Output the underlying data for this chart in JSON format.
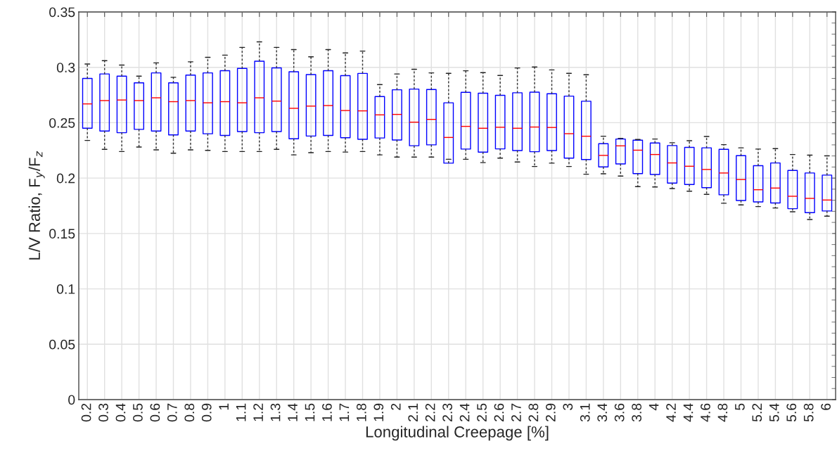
{
  "chart_data": {
    "type": "box",
    "xlabel": "Longitudinal Creepage [%]",
    "ylabel": "L/V Ratio, F$_{y}$/F$_{z}$",
    "categories": [
      "0.2",
      "0.3",
      "0.4",
      "0.5",
      "0.6",
      "0.7",
      "0.8",
      "0.9",
      "1",
      "1.1",
      "1.2",
      "1.3",
      "1.4",
      "1.5",
      "1.6",
      "1.7",
      "1.8",
      "1.9",
      "2",
      "2.1",
      "2.2",
      "2.3",
      "2.4",
      "2.5",
      "2.6",
      "2.7",
      "2.8",
      "2.9",
      "3",
      "3.1",
      "3.4",
      "3.6",
      "3.8",
      "4",
      "4.2",
      "4.4",
      "4.6",
      "4.8",
      "5",
      "5.2",
      "5.4",
      "5.6",
      "5.8",
      "6"
    ],
    "series": [
      {
        "color": "#0000ff",
        "boxes": [
          {
            "low": 0.234,
            "q1": 0.245,
            "median": 0.267,
            "q3": 0.29,
            "high": 0.303
          },
          {
            "low": 0.226,
            "q1": 0.2425,
            "median": 0.27,
            "q3": 0.294,
            "high": 0.306
          },
          {
            "low": 0.224,
            "q1": 0.241,
            "median": 0.2705,
            "q3": 0.292,
            "high": 0.302
          },
          {
            "low": 0.228,
            "q1": 0.244,
            "median": 0.27,
            "q3": 0.286,
            "high": 0.292
          },
          {
            "low": 0.2255,
            "q1": 0.2425,
            "median": 0.2725,
            "q3": 0.295,
            "high": 0.304
          },
          {
            "low": 0.2225,
            "q1": 0.239,
            "median": 0.269,
            "q3": 0.286,
            "high": 0.291
          },
          {
            "low": 0.2255,
            "q1": 0.2425,
            "median": 0.27,
            "q3": 0.293,
            "high": 0.305
          },
          {
            "low": 0.225,
            "q1": 0.24,
            "median": 0.268,
            "q3": 0.295,
            "high": 0.309
          },
          {
            "low": 0.224,
            "q1": 0.2385,
            "median": 0.269,
            "q3": 0.297,
            "high": 0.311
          },
          {
            "low": 0.224,
            "q1": 0.242,
            "median": 0.268,
            "q3": 0.299,
            "high": 0.318
          },
          {
            "low": 0.224,
            "q1": 0.241,
            "median": 0.2725,
            "q3": 0.3055,
            "high": 0.323
          },
          {
            "low": 0.226,
            "q1": 0.242,
            "median": 0.2695,
            "q3": 0.2995,
            "high": 0.318
          },
          {
            "low": 0.221,
            "q1": 0.2355,
            "median": 0.263,
            "q3": 0.296,
            "high": 0.316
          },
          {
            "low": 0.223,
            "q1": 0.238,
            "median": 0.265,
            "q3": 0.2935,
            "high": 0.3095
          },
          {
            "low": 0.224,
            "q1": 0.2385,
            "median": 0.2655,
            "q3": 0.297,
            "high": 0.316
          },
          {
            "low": 0.2235,
            "q1": 0.2365,
            "median": 0.261,
            "q3": 0.2925,
            "high": 0.313
          },
          {
            "low": 0.224,
            "q1": 0.235,
            "median": 0.2607,
            "q3": 0.2945,
            "high": 0.3147
          },
          {
            "low": 0.221,
            "q1": 0.2362,
            "median": 0.2571,
            "q3": 0.2736,
            "high": 0.2844
          },
          {
            "low": 0.219,
            "q1": 0.2344,
            "median": 0.2575,
            "q3": 0.2797,
            "high": 0.294
          },
          {
            "low": 0.219,
            "q1": 0.2292,
            "median": 0.2505,
            "q3": 0.2804,
            "high": 0.2982
          },
          {
            "low": 0.219,
            "q1": 0.23,
            "median": 0.253,
            "q3": 0.28,
            "high": 0.295
          },
          {
            "low": 0.217,
            "q1": 0.2135,
            "median": 0.2367,
            "q3": 0.268,
            "high": 0.2946
          },
          {
            "low": 0.217,
            "q1": 0.2262,
            "median": 0.2467,
            "q3": 0.2774,
            "high": 0.2969
          },
          {
            "low": 0.214,
            "q1": 0.2234,
            "median": 0.245,
            "q3": 0.2766,
            "high": 0.2952
          },
          {
            "low": 0.218,
            "q1": 0.2264,
            "median": 0.2459,
            "q3": 0.2747,
            "high": 0.2927
          },
          {
            "low": 0.2145,
            "q1": 0.2249,
            "median": 0.245,
            "q3": 0.277,
            "high": 0.2994
          },
          {
            "low": 0.2105,
            "q1": 0.2238,
            "median": 0.2461,
            "q3": 0.2776,
            "high": 0.3003
          },
          {
            "low": 0.2135,
            "q1": 0.2249,
            "median": 0.2457,
            "q3": 0.2762,
            "high": 0.2977
          },
          {
            "low": 0.2105,
            "q1": 0.218,
            "median": 0.2401,
            "q3": 0.274,
            "high": 0.2946
          },
          {
            "low": 0.2035,
            "q1": 0.2168,
            "median": 0.2378,
            "q3": 0.2694,
            "high": 0.2933
          },
          {
            "low": 0.2039,
            "q1": 0.2101,
            "median": 0.2205,
            "q3": 0.2311,
            "high": 0.2378
          },
          {
            "low": 0.2018,
            "q1": 0.2128,
            "median": 0.2291,
            "q3": 0.2353,
            "high": 0.2359
          },
          {
            "low": 0.1923,
            "q1": 0.2041,
            "median": 0.2252,
            "q3": 0.2342,
            "high": 0.2349
          },
          {
            "low": 0.192,
            "q1": 0.2033,
            "median": 0.2213,
            "q3": 0.2317,
            "high": 0.2353
          },
          {
            "low": 0.1906,
            "q1": 0.1955,
            "median": 0.2137,
            "q3": 0.2294,
            "high": 0.2319
          },
          {
            "low": 0.1882,
            "q1": 0.1942,
            "median": 0.2107,
            "q3": 0.2277,
            "high": 0.2338
          },
          {
            "low": 0.1853,
            "q1": 0.1914,
            "median": 0.2078,
            "q3": 0.2273,
            "high": 0.2376
          },
          {
            "low": 0.1773,
            "q1": 0.1849,
            "median": 0.2046,
            "q3": 0.226,
            "high": 0.2302
          },
          {
            "low": 0.1758,
            "q1": 0.1798,
            "median": 0.1987,
            "q3": 0.2203,
            "high": 0.2273
          },
          {
            "low": 0.1743,
            "q1": 0.1785,
            "median": 0.1895,
            "q3": 0.2112,
            "high": 0.2262
          },
          {
            "low": 0.173,
            "q1": 0.1775,
            "median": 0.191,
            "q3": 0.2137,
            "high": 0.2266
          },
          {
            "low": 0.1696,
            "q1": 0.1724,
            "median": 0.1836,
            "q3": 0.2069,
            "high": 0.2213
          },
          {
            "low": 0.1626,
            "q1": 0.1688,
            "median": 0.1817,
            "q3": 0.2046,
            "high": 0.2207
          },
          {
            "low": 0.1656,
            "q1": 0.1703,
            "median": 0.1802,
            "q3": 0.2027,
            "high": 0.2201
          }
        ]
      }
    ],
    "ylim": [
      0,
      0.35
    ],
    "yticks": [
      0,
      0.05,
      0.1,
      0.15,
      0.2,
      0.25,
      0.3,
      0.35
    ],
    "grid": true
  }
}
